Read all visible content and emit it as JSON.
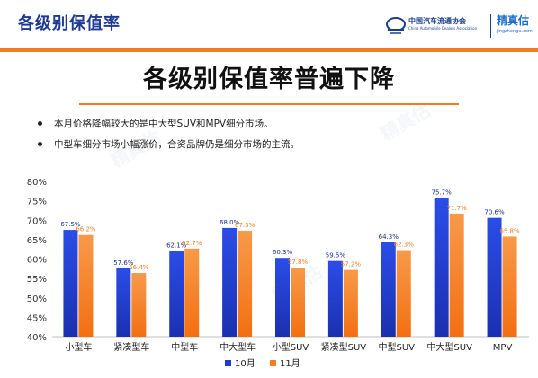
{
  "header": {
    "page_title": "各级别保值率",
    "org_name_cn": "中国汽车流通协会",
    "org_name_en": "China Automobile Dealers Association",
    "partner_name_cn": "精真估",
    "partner_name_en": "jingzhengu.com"
  },
  "headline": "各级别保值率普遍下降",
  "bullets": [
    "本月价格降幅较大的是中大型SUV和MPV细分市场。",
    "中型车细分市场小幅涨价，合资品牌仍是细分市场的主流。"
  ],
  "colors": {
    "accent": "#f47c20",
    "series_oct": "#1e3ccf",
    "series_nov": "#f57d22",
    "title_blue": "#1f3a93"
  },
  "chart_data": {
    "type": "bar",
    "categories": [
      "小型车",
      "紧凑型车",
      "中型车",
      "中大型车",
      "小型SUV",
      "紧凑型SUV",
      "中型SUV",
      "中大型SUV",
      "MPV"
    ],
    "series": [
      {
        "name": "10月",
        "values": [
          67.5,
          57.6,
          62.1,
          68.0,
          60.3,
          59.5,
          64.3,
          75.7,
          70.6
        ],
        "labels": [
          "67.5%",
          "57.6%",
          "62.1%",
          "68.0%",
          "60.3%",
          "59.5%",
          "64.3%",
          "75.7%",
          "70.6%"
        ]
      },
      {
        "name": "11月",
        "values": [
          66.2,
          56.4,
          62.7,
          67.3,
          57.8,
          57.2,
          62.3,
          71.7,
          65.8
        ],
        "labels": [
          "66.2%",
          "56.4%",
          "62.7%",
          "67.3%",
          "57.8%",
          "57.2%",
          "62.3%",
          "71.7%",
          "65.8%"
        ]
      }
    ],
    "ylim": [
      40,
      80
    ],
    "yticks": [
      40,
      45,
      50,
      55,
      60,
      65,
      70,
      75,
      80
    ],
    "ytick_labels": [
      "40%",
      "45%",
      "50%",
      "55%",
      "60%",
      "65%",
      "70%",
      "75%",
      "80%"
    ],
    "grid": false,
    "legend": "bottom-center"
  }
}
